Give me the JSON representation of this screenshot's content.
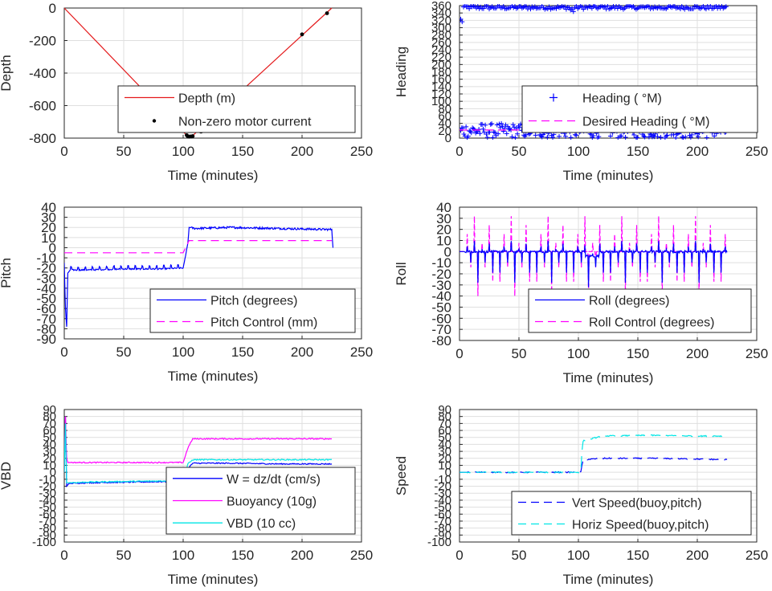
{
  "chart_data": [
    {
      "type": "line",
      "id": "depth",
      "xlabel": "Time (minutes)",
      "ylabel": "Depth",
      "xlim": [
        0,
        250
      ],
      "ylim": [
        -800,
        0
      ],
      "xticks": [
        0,
        50,
        100,
        150,
        200,
        250
      ],
      "yticks": [
        -800,
        -600,
        -400,
        -200,
        0
      ],
      "grid": true,
      "legend_position": "bottom-right",
      "series": [
        {
          "name": "Depth (m)",
          "style": "solid",
          "color": "#e41a1c",
          "marker": "none",
          "x": [
            0,
            104,
            106,
            108,
            225
          ],
          "y": [
            0,
            -790,
            -790,
            -785,
            0
          ]
        },
        {
          "name": "Non-zero motor current",
          "style": "none",
          "color": "#000000",
          "marker": "dot",
          "x": [
            103,
            104,
            105,
            106,
            107,
            108,
            115,
            200,
            221
          ],
          "y": [
            -782,
            -790,
            -791,
            -790,
            -790,
            -788,
            -760,
            -162,
            -32
          ]
        }
      ]
    },
    {
      "type": "scatter",
      "id": "heading",
      "xlabel": "Time (minutes)",
      "ylabel": "Heading",
      "xlim": [
        0,
        250
      ],
      "ylim": [
        0,
        360
      ],
      "xticks": [
        0,
        50,
        100,
        150,
        200,
        250
      ],
      "yticks": [
        0,
        20,
        40,
        60,
        80,
        100,
        120,
        140,
        160,
        180,
        200,
        220,
        240,
        260,
        280,
        300,
        320,
        340,
        360
      ],
      "grid": true,
      "legend_position": "bottom-right",
      "series": [
        {
          "name": "Heading ( °M)",
          "style": "none",
          "color": "#0000ff",
          "marker": "plus",
          "x": [
            2,
            4,
            8,
            15,
            25,
            35,
            45,
            55,
            65,
            75,
            85,
            95,
            100,
            105,
            115,
            125,
            135,
            145,
            155,
            165,
            175,
            185,
            195,
            205,
            215,
            225
          ],
          "y_band_low": [
            312,
            345,
            350,
            350,
            350,
            350,
            350,
            350,
            350,
            350,
            350,
            338,
            350,
            345,
            350,
            350,
            350,
            350,
            350,
            350,
            350,
            350,
            350,
            350,
            350,
            350
          ],
          "y_band_high": [
            330,
            360,
            360,
            360,
            360,
            360,
            360,
            360,
            360,
            360,
            360,
            358,
            360,
            360,
            360,
            360,
            360,
            360,
            360,
            360,
            360,
            360,
            360,
            360,
            360,
            360
          ],
          "low_band": [
            0,
            40
          ]
        },
        {
          "name": "Desired Heading ( °M)",
          "style": "dash",
          "color": "#ff00ff",
          "marker": "none",
          "x": [
            0,
            225
          ],
          "y": [
            22,
            22
          ]
        }
      ]
    },
    {
      "type": "line",
      "id": "pitch",
      "xlabel": "Time (minutes)",
      "ylabel": "Pitch",
      "xlim": [
        0,
        250
      ],
      "ylim": [
        -90,
        40
      ],
      "xticks": [
        0,
        50,
        100,
        150,
        200,
        250
      ],
      "yticks": [
        -90,
        -80,
        -70,
        -60,
        -50,
        -40,
        -30,
        -20,
        -10,
        0,
        10,
        20,
        30,
        40
      ],
      "grid": true,
      "legend_position": "bottom-right",
      "series": [
        {
          "name": "Pitch (degrees)",
          "style": "solid",
          "color": "#0000ff",
          "x": [
            0,
            1,
            2,
            3,
            5,
            20,
            50,
            80,
            100,
            102,
            104,
            105,
            110,
            140,
            180,
            220,
            225,
            226
          ],
          "y": [
            -15,
            -60,
            -78,
            -25,
            -22,
            -22,
            -21,
            -21,
            -20,
            -8,
            5,
            20,
            19,
            20,
            19,
            18,
            18,
            0
          ]
        },
        {
          "name": "Pitch Control (mm)",
          "style": "dash",
          "color": "#ff00ff",
          "x": [
            0,
            3,
            4,
            100,
            102,
            105,
            225
          ],
          "y": [
            -5,
            -5,
            -5,
            -5,
            0,
            7,
            7
          ]
        }
      ]
    },
    {
      "type": "line",
      "id": "roll",
      "xlabel": "Time (minutes)",
      "ylabel": "Roll",
      "xlim": [
        0,
        250
      ],
      "ylim": [
        -80,
        40
      ],
      "xticks": [
        0,
        50,
        100,
        150,
        200,
        250
      ],
      "yticks": [
        -80,
        -70,
        -60,
        -50,
        -40,
        -30,
        -20,
        -10,
        0,
        10,
        20,
        30,
        40
      ],
      "grid": true,
      "legend_position": "bottom-right",
      "series": [
        {
          "name": "Roll (degrees)",
          "style": "solid",
          "color": "#0000ff",
          "x": [
            0,
            225
          ],
          "y": [
            0,
            0
          ],
          "oscillation_amplitude": [
            -30,
            15
          ]
        },
        {
          "name": "Roll Control (degrees)",
          "style": "dash",
          "color": "#ff00ff",
          "x": [
            0,
            225
          ],
          "y": [
            0,
            0
          ],
          "oscillation_amplitude": [
            -40,
            40
          ]
        }
      ]
    },
    {
      "type": "line",
      "id": "vbd",
      "xlabel": "Time (minutes)",
      "ylabel": "VBD",
      "xlim": [
        0,
        250
      ],
      "ylim": [
        -100,
        90
      ],
      "xticks": [
        0,
        50,
        100,
        150,
        200,
        250
      ],
      "yticks": [
        -100,
        -90,
        -80,
        -70,
        -60,
        -50,
        -40,
        -30,
        -20,
        -10,
        0,
        10,
        20,
        30,
        40,
        50,
        60,
        70,
        80,
        90
      ],
      "grid": true,
      "legend_position": "bottom-right",
      "series": [
        {
          "name": "W = dz/dt (cm/s)",
          "style": "solid",
          "color": "#0000ff",
          "x": [
            0,
            1,
            2,
            4,
            20,
            60,
            100,
            104,
            108,
            140,
            180,
            225
          ],
          "y": [
            0,
            80,
            -20,
            -16,
            -15,
            -14,
            -13,
            5,
            13,
            13,
            12,
            12
          ]
        },
        {
          "name": "Buoyancy (10g)",
          "style": "solid",
          "color": "#ff00ff",
          "x": [
            0,
            1,
            2,
            3,
            20,
            60,
            100,
            104,
            108,
            140,
            180,
            225
          ],
          "y": [
            10,
            80,
            20,
            14,
            14,
            14,
            14,
            35,
            48,
            48,
            48,
            48
          ]
        },
        {
          "name": "VBD (10 cc)",
          "style": "solid",
          "color": "#00e6e6",
          "x": [
            0,
            1,
            2,
            4,
            20,
            60,
            100,
            104,
            108,
            140,
            180,
            225
          ],
          "y": [
            0,
            70,
            -15,
            -15,
            -14,
            -13,
            -12,
            12,
            18,
            18,
            18,
            18
          ]
        }
      ]
    },
    {
      "type": "line",
      "id": "speed",
      "xlabel": "Time (minutes)",
      "ylabel": "Speed",
      "xlim": [
        0,
        250
      ],
      "ylim": [
        -100,
        90
      ],
      "xticks": [
        0,
        50,
        100,
        150,
        200,
        250
      ],
      "yticks": [
        -100,
        -90,
        -80,
        -70,
        -60,
        -50,
        -40,
        -30,
        -20,
        -10,
        0,
        10,
        20,
        30,
        40,
        50,
        60,
        70,
        80,
        90
      ],
      "grid": true,
      "legend_position": "bottom-right",
      "series": [
        {
          "name": "Vert Speed(buoy,pitch)",
          "style": "dash",
          "color": "#0000ff",
          "x": [
            0,
            102,
            103,
            104,
            120,
            160,
            200,
            225
          ],
          "y": [
            0,
            0,
            10,
            18,
            20,
            20,
            19,
            18
          ]
        },
        {
          "name": "Horiz Speed(buoy,pitch)",
          "style": "dash",
          "color": "#00e6e6",
          "x": [
            0,
            102,
            103,
            104,
            120,
            160,
            200,
            225
          ],
          "y": [
            0,
            0,
            30,
            45,
            52,
            53,
            52,
            52
          ]
        }
      ]
    }
  ]
}
